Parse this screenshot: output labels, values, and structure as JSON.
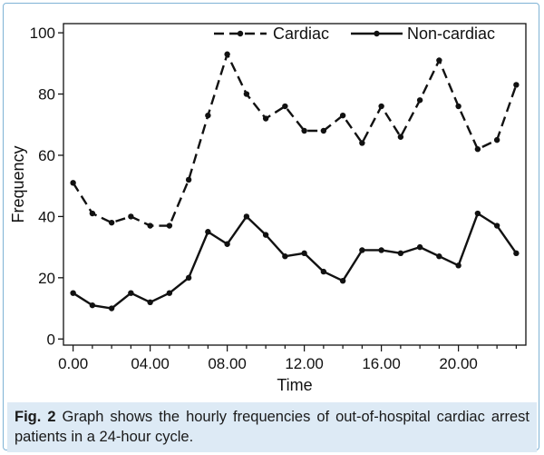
{
  "chart_data": {
    "type": "line",
    "x": [
      0,
      1,
      2,
      3,
      4,
      5,
      6,
      7,
      8,
      9,
      10,
      11,
      12,
      13,
      14,
      15,
      16,
      17,
      18,
      19,
      20,
      21,
      22,
      23
    ],
    "series": [
      {
        "name": "Cardiac",
        "style": "dashed",
        "values": [
          51,
          41,
          38,
          40,
          37,
          37,
          52,
          73,
          93,
          80,
          72,
          76,
          68,
          68,
          73,
          64,
          76,
          66,
          78,
          91,
          76,
          62,
          65,
          83
        ]
      },
      {
        "name": "Non-cardiac",
        "style": "solid",
        "values": [
          15,
          11,
          10,
          15,
          12,
          15,
          20,
          35,
          31,
          40,
          34,
          27,
          28,
          22,
          19,
          29,
          29,
          28,
          30,
          27,
          24,
          41,
          37,
          28
        ]
      }
    ],
    "x_tick_values": [
      0,
      4,
      8,
      12,
      16,
      20
    ],
    "x_tick_labels": [
      "0.00",
      "04.00",
      "08.00",
      "12.00",
      "16.00",
      "20.00"
    ],
    "y_ticks": [
      0,
      20,
      40,
      60,
      80,
      100
    ],
    "xlabel": "Time",
    "ylabel": "Frequency",
    "xlim": [
      -0.5,
      23.5
    ],
    "ylim": [
      -2,
      103
    ],
    "grid": false,
    "legend_position": "top-right",
    "line_color": "#111111"
  },
  "caption": {
    "label": "Fig. 2",
    "text": " Graph shows the hourly frequencies of out-of-hospital cardiac arrest patients in a 24-hour cycle."
  }
}
